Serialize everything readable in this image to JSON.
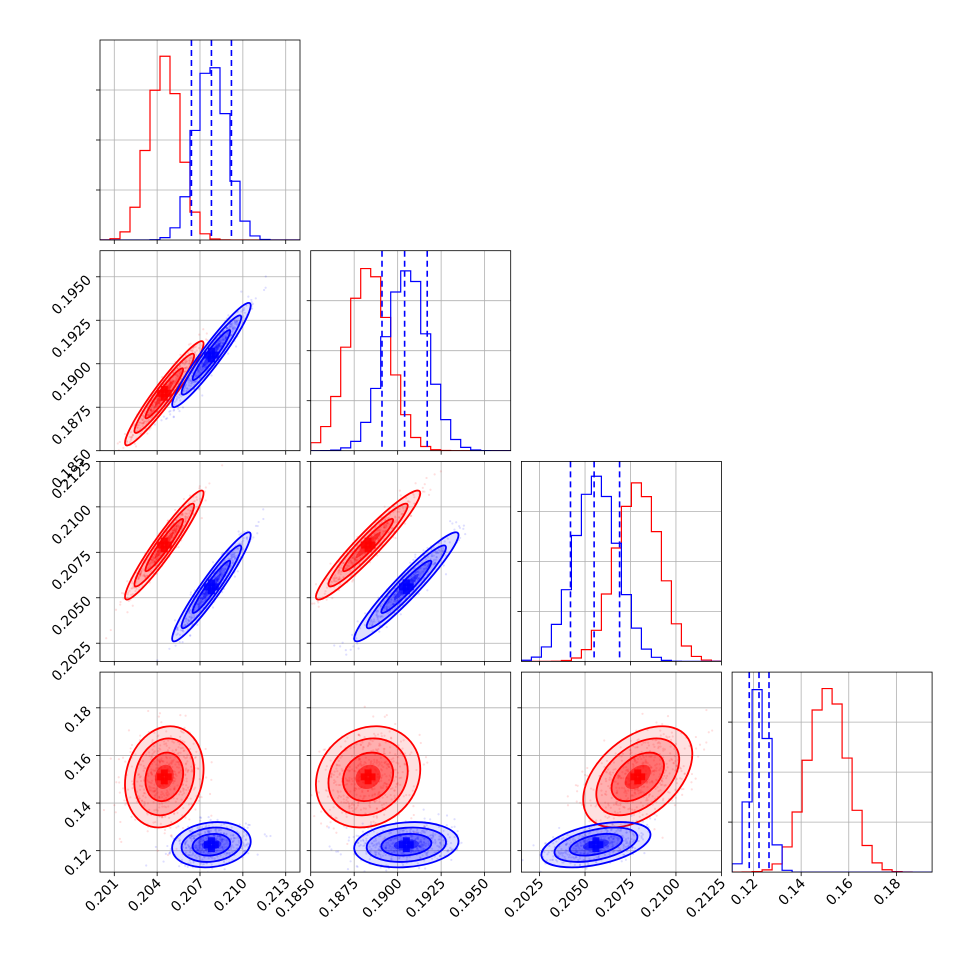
{
  "chart_data": {
    "type": "scatter",
    "subtype": "corner-plot",
    "grid": true,
    "series": [
      {
        "color": "#ff0000"
      },
      {
        "color": "#0000ff"
      }
    ],
    "parameters": [
      {
        "range": [
          0.2,
          0.214
        ],
        "tick_labels": [
          "0.201",
          "0.204",
          "0.207",
          "0.210",
          "0.213"
        ],
        "tick_values": [
          0.201,
          0.204,
          0.207,
          0.21,
          0.213
        ],
        "red": {
          "mean": 0.2045,
          "sd": 0.0011
        },
        "blue": {
          "mean": 0.2078,
          "sd": 0.0011
        },
        "quantile_lines": [
          0.2064,
          0.2078,
          0.2092
        ]
      },
      {
        "range": [
          0.185,
          0.1965
        ],
        "tick_labels": [
          "0.1850",
          "0.1875",
          "0.1900",
          "0.1925",
          "0.1950"
        ],
        "tick_values": [
          0.185,
          0.1875,
          0.19,
          0.1925,
          0.195
        ],
        "red": {
          "mean": 0.1883,
          "sd": 0.0012
        },
        "blue": {
          "mean": 0.1905,
          "sd": 0.0012
        },
        "quantile_lines": [
          0.1891,
          0.1904,
          0.1917
        ]
      },
      {
        "range": [
          0.2015,
          0.2125
        ],
        "tick_labels": [
          "0.2025",
          "0.2050",
          "0.2075",
          "0.2100",
          "0.2125"
        ],
        "tick_values": [
          0.2025,
          0.205,
          0.2075,
          0.21,
          0.2125
        ],
        "red": {
          "mean": 0.2079,
          "sd": 0.0012
        },
        "blue": {
          "mean": 0.2056,
          "sd": 0.0012
        },
        "quantile_lines": [
          0.2042,
          0.2055,
          0.2069
        ]
      },
      {
        "range": [
          0.111,
          0.195
        ],
        "tick_labels": [
          "0.12",
          "0.14",
          "0.16",
          "0.18"
        ],
        "tick_values": [
          0.12,
          0.14,
          0.16,
          0.18
        ],
        "red": {
          "mean": 0.151,
          "sd": 0.0085
        },
        "blue": {
          "mean": 0.1225,
          "sd": 0.0038
        },
        "quantile_lines": [
          0.1182,
          0.1223,
          0.1265
        ]
      }
    ],
    "pair_correlation": {
      "0-1": 0.95,
      "0-2": 0.95,
      "1-2": 0.95,
      "0-3": 0.15,
      "1-3": 0.15,
      "2-3": 0.45
    }
  }
}
